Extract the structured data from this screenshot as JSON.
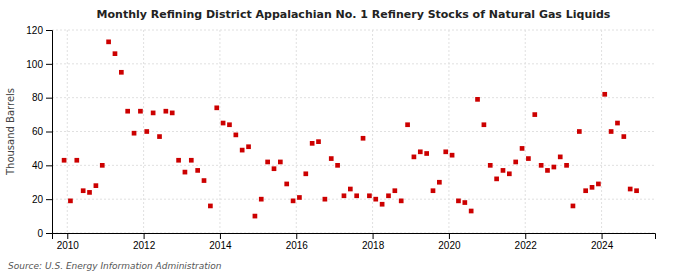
{
  "chart_data": {
    "type": "scatter",
    "title": "Monthly Refining District Appalachian No. 1 Refinery Stocks of Natural Gas Liquids",
    "ylabel": "Thousand Barrels",
    "annotation": "Source: U.S. Energy Information Administration",
    "color": "#cc0000",
    "marker": "square",
    "grid": true,
    "xlim": [
      2009.6,
      2025.4
    ],
    "xticks": [
      2010,
      2012,
      2014,
      2016,
      2018,
      2020,
      2022,
      2024
    ],
    "ylim": [
      0,
      120
    ],
    "yticks": [
      0,
      20,
      40,
      60,
      80,
      100,
      120
    ],
    "x": [
      2009.917,
      2010.083,
      2010.25,
      2010.417,
      2010.583,
      2010.75,
      2010.917,
      2011.083,
      2011.25,
      2011.417,
      2011.583,
      2011.75,
      2011.917,
      2012.083,
      2012.25,
      2012.417,
      2012.583,
      2012.75,
      2012.917,
      2013.083,
      2013.25,
      2013.417,
      2013.583,
      2013.75,
      2013.917,
      2014.083,
      2014.25,
      2014.417,
      2014.583,
      2014.75,
      2014.917,
      2015.083,
      2015.25,
      2015.417,
      2015.583,
      2015.75,
      2015.917,
      2016.083,
      2016.25,
      2016.417,
      2016.583,
      2016.75,
      2016.917,
      2017.083,
      2017.25,
      2017.417,
      2017.583,
      2017.75,
      2017.917,
      2018.083,
      2018.25,
      2018.417,
      2018.583,
      2018.75,
      2018.917,
      2019.083,
      2019.25,
      2019.417,
      2019.583,
      2019.75,
      2019.917,
      2020.083,
      2020.25,
      2020.417,
      2020.583,
      2020.75,
      2020.917,
      2021.083,
      2021.25,
      2021.417,
      2021.583,
      2021.75,
      2021.917,
      2022.083,
      2022.25,
      2022.417,
      2022.583,
      2022.75,
      2022.917,
      2023.083,
      2023.25,
      2023.417,
      2023.583,
      2023.75,
      2023.917,
      2024.083,
      2024.25,
      2024.417,
      2024.583,
      2024.75,
      2024.917
    ],
    "values": [
      43,
      19,
      43,
      25,
      24,
      28,
      40,
      113,
      106,
      95,
      72,
      59,
      72,
      60,
      71,
      57,
      72,
      71,
      43,
      36,
      43,
      37,
      31,
      16,
      74,
      65,
      64,
      58,
      49,
      51,
      10,
      20,
      42,
      38,
      42,
      29,
      19,
      21,
      35,
      53,
      54,
      20,
      44,
      40,
      22,
      26,
      22,
      56,
      22,
      20,
      17,
      22,
      25,
      19,
      64,
      45,
      48,
      47,
      25,
      30,
      48,
      46,
      19,
      18,
      13,
      79,
      64,
      40,
      32,
      37,
      35,
      42,
      50,
      44,
      70,
      40,
      37,
      39,
      45,
      40,
      16,
      60,
      25,
      27,
      29,
      82,
      60,
      65,
      57,
      26,
      25
    ]
  }
}
